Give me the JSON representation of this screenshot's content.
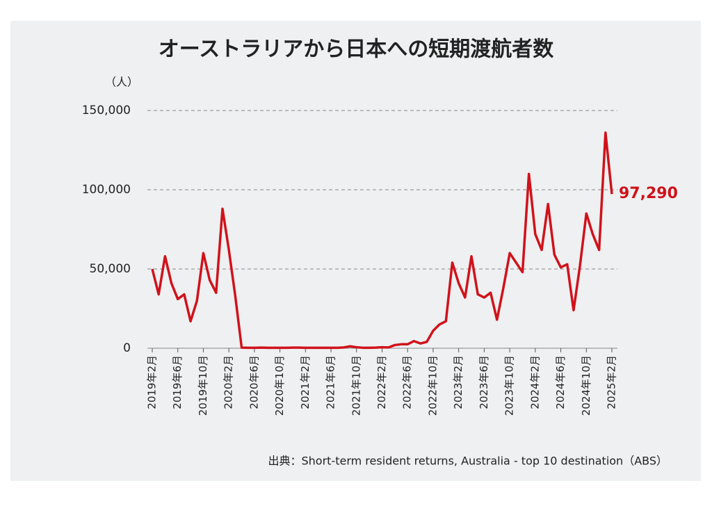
{
  "chart_data": {
    "type": "line",
    "title": "オーストラリアから日本への短期渡航者数",
    "y_unit": "（人）",
    "source": "出典：Short-term resident returns, Australia - top 10 destination（ABS）",
    "categories": [
      "2019年2月",
      null,
      null,
      null,
      "2019年6月",
      null,
      null,
      null,
      "2019年10月",
      null,
      null,
      null,
      "2020年2月",
      null,
      null,
      null,
      "2020年6月",
      null,
      null,
      null,
      "2020年10月",
      null,
      null,
      null,
      "2021年2月",
      null,
      null,
      null,
      "2021年6月",
      null,
      null,
      null,
      "2021年10月",
      null,
      null,
      null,
      "2022年2月",
      null,
      null,
      null,
      "2022年6月",
      null,
      null,
      null,
      "2022年10月",
      null,
      null,
      null,
      "2023年2月",
      null,
      null,
      null,
      "2023年6月",
      null,
      null,
      null,
      "2023年10月",
      null,
      null,
      null,
      "2024年2月",
      null,
      null,
      null,
      "2024年6月",
      null,
      null,
      null,
      "2024年10月",
      null,
      null,
      null,
      "2025年2月"
    ],
    "series": [
      {
        "color": "#d0121b",
        "values": [
          50000,
          34000,
          58000,
          41000,
          31000,
          34000,
          17000,
          30000,
          60000,
          43000,
          35000,
          88000,
          62000,
          33000,
          400,
          300,
          300,
          400,
          300,
          300,
          300,
          300,
          400,
          400,
          300,
          300,
          300,
          300,
          300,
          300,
          500,
          1200,
          600,
          300,
          300,
          400,
          600,
          500,
          2000,
          2500,
          2500,
          4500,
          3000,
          4000,
          11000,
          15000,
          17000,
          54000,
          41000,
          32000,
          58000,
          34000,
          32000,
          35000,
          18000,
          38000,
          60000,
          54000,
          48000,
          110000,
          72000,
          62000,
          91000,
          59000,
          51000,
          53000,
          24000,
          52000,
          85000,
          72000,
          62000,
          136000,
          97290
        ],
        "value_labels": [
          null,
          null,
          null,
          null,
          null,
          null,
          null,
          null,
          null,
          null,
          null,
          null,
          null,
          null,
          null,
          null,
          null,
          null,
          null,
          null,
          null,
          null,
          null,
          null,
          null,
          null,
          null,
          null,
          null,
          null,
          null,
          null,
          null,
          null,
          null,
          null,
          null,
          null,
          null,
          null,
          null,
          null,
          null,
          null,
          null,
          null,
          null,
          null,
          null,
          null,
          null,
          null,
          null,
          null,
          null,
          null,
          null,
          null,
          null,
          null,
          null,
          null,
          null,
          null,
          null,
          null,
          null,
          null,
          null,
          null,
          null,
          null,
          "97,290"
        ]
      }
    ],
    "ylim": [
      0,
      150000
    ],
    "yticks": [
      0,
      {
        "value": 50000,
        "label": "50,000"
      },
      {
        "value": 100000,
        "label": "100,000"
      },
      {
        "value": 150000,
        "label": "150,000"
      }
    ],
    "grid": true
  }
}
